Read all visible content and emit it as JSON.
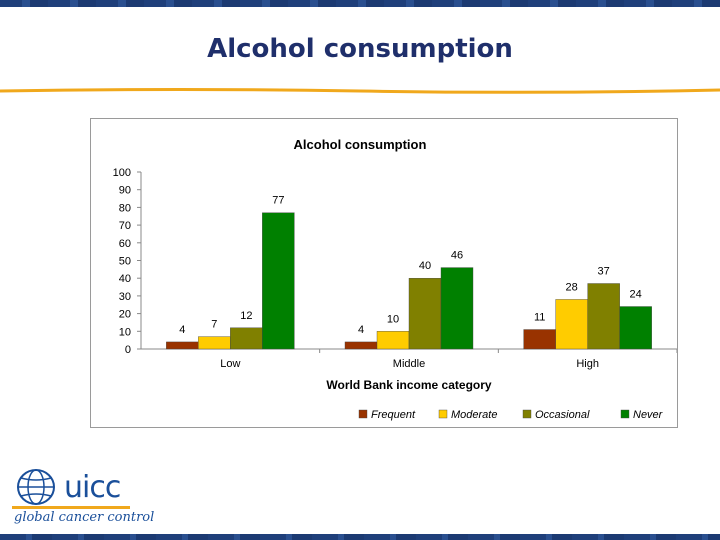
{
  "slide": {
    "title": "Alcohol consumption"
  },
  "logo": {
    "name": "uicc",
    "tagline": "global cancer control"
  },
  "colors": {
    "title": "#1f2f6b",
    "rule": "#f0a81c",
    "brand": "#1a4f9a"
  },
  "chart_data": {
    "type": "bar",
    "title": "Alcohol consumption",
    "xlabel": "World Bank income category",
    "ylabel": "",
    "ylim": [
      0,
      100
    ],
    "yticks": [
      0,
      10,
      20,
      30,
      40,
      50,
      60,
      70,
      80,
      90,
      100
    ],
    "categories": [
      "Low",
      "Middle",
      "High"
    ],
    "legend_position": "bottom",
    "grid": false,
    "series": [
      {
        "name": "Frequent",
        "color": "#993300",
        "values": [
          4,
          4,
          11
        ]
      },
      {
        "name": "Moderate",
        "color": "#ffcc00",
        "values": [
          7,
          10,
          28
        ]
      },
      {
        "name": "Occasional",
        "color": "#808000",
        "values": [
          12,
          40,
          37
        ]
      },
      {
        "name": "Never",
        "color": "#008000",
        "values": [
          77,
          46,
          24
        ]
      }
    ]
  }
}
